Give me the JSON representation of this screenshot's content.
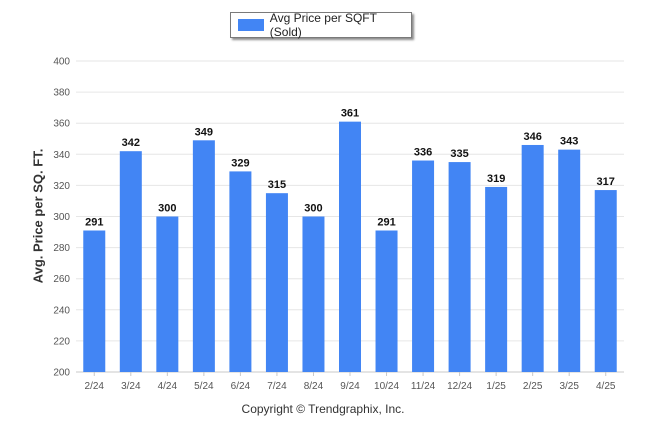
{
  "chart_data": {
    "type": "bar",
    "categories": [
      "2/24",
      "3/24",
      "4/24",
      "5/24",
      "6/24",
      "7/24",
      "8/24",
      "9/24",
      "10/24",
      "11/24",
      "12/24",
      "1/25",
      "2/25",
      "3/25",
      "4/25"
    ],
    "series": [
      {
        "name": "Avg Price per SQFT (Sold)",
        "values": [
          291,
          342,
          300,
          349,
          329,
          315,
          300,
          361,
          291,
          336,
          335,
          319,
          346,
          343,
          317
        ],
        "color": "#4285f4"
      }
    ],
    "ylabel": "Avg. Price per SQ. FT.",
    "xlabel": "",
    "ylim": [
      200,
      400
    ],
    "yticks": [
      200,
      220,
      240,
      260,
      280,
      300,
      320,
      340,
      360,
      380,
      400
    ],
    "grid": true,
    "legend": "top-center"
  },
  "footer": {
    "copyright": "Copyright © Trendgraphix, Inc."
  }
}
